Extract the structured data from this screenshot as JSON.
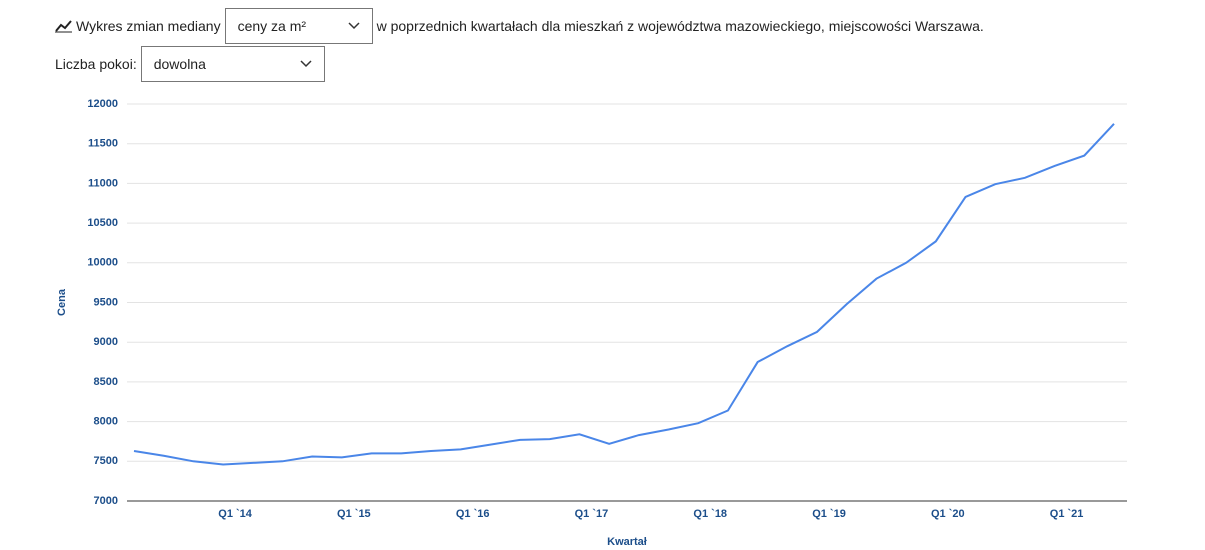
{
  "header": {
    "prefix": "Wykres zmian mediany",
    "metric_select": "ceny za m²",
    "suffix": "w poprzednich kwartałach dla mieszkań z województwa mazowieckiego, miejscowości Warszawa.",
    "rooms_label": "Liczba pokoi:",
    "rooms_select": "dowolna"
  },
  "chart_data": {
    "type": "line",
    "x_label": "Kwartał",
    "y_label": "Cena",
    "categories": [
      null,
      null,
      null,
      "Q1 `14",
      null,
      null,
      null,
      "Q1 `15",
      null,
      null,
      null,
      "Q1 `16",
      null,
      null,
      null,
      "Q1 `17",
      null,
      null,
      null,
      "Q1 `18",
      null,
      null,
      null,
      "Q1 `19",
      null,
      null,
      null,
      "Q1 `20",
      null,
      null,
      null,
      "Q1 `21",
      null,
      null
    ],
    "series": [
      {
        "name": "Cena",
        "color": "#4a86e8",
        "values": [
          7630,
          7570,
          7500,
          7460,
          7480,
          7500,
          7560,
          7550,
          7600,
          7600,
          7630,
          7650,
          7710,
          7770,
          7780,
          7840,
          7720,
          7830,
          7900,
          7980,
          8140,
          8750,
          8950,
          9130,
          9480,
          9800,
          10000,
          10270,
          10830,
          10990,
          11070,
          11220,
          11350,
          11750
        ]
      }
    ],
    "ylim": [
      7000,
      12000
    ],
    "yticks": [
      7000,
      7500,
      8000,
      8500,
      9000,
      9500,
      10000,
      10500,
      11000,
      11500,
      12000
    ],
    "grid": true
  }
}
